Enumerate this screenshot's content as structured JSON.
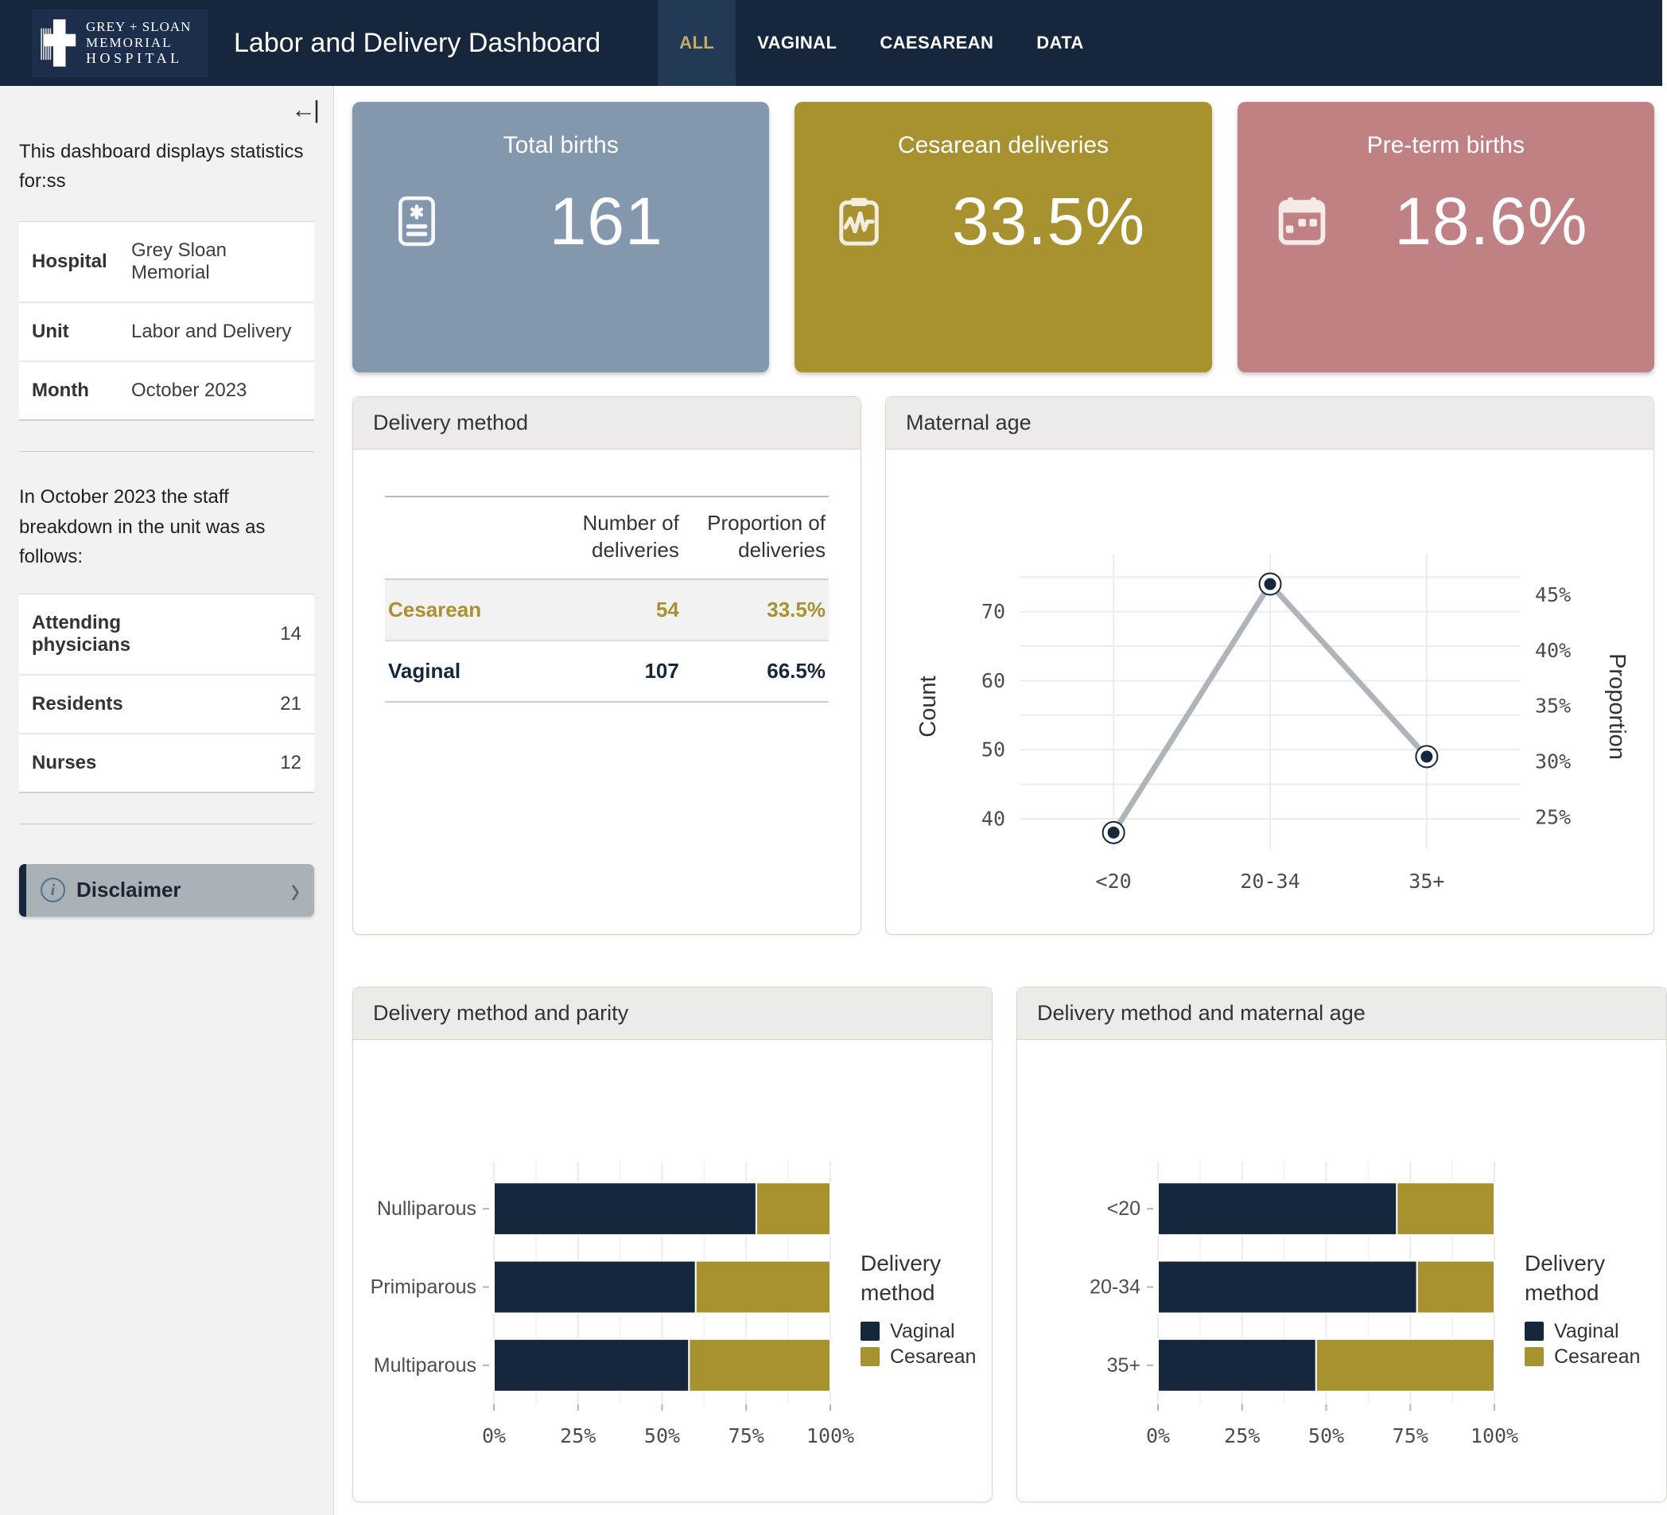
{
  "colors": {
    "navy": "#16263C",
    "navy_tab_active_bg": "#223A55",
    "gold": "#A8912F",
    "gold_text": "#C9AC5F",
    "rose": "#C08184",
    "bluegray": "#8398AC",
    "line_gray": "#AEB4B9",
    "grid_gray": "#EBEBEB"
  },
  "navbar": {
    "logo": {
      "line1": "GREY + SLOAN",
      "line2": "MEMORIAL",
      "line3": "HOSPITAL"
    },
    "title": "Labor and Delivery Dashboard",
    "tabs": [
      {
        "label": "ALL",
        "active": true
      },
      {
        "label": "VAGINAL",
        "active": false
      },
      {
        "label": "CAESAREAN",
        "active": false
      },
      {
        "label": "DATA",
        "active": false
      }
    ]
  },
  "sidebar": {
    "collapse_icon": "collapse-sidebar-icon",
    "intro": "This dashboard displays statistics for:ss",
    "info_table": [
      {
        "label": "Hospital",
        "value": "Grey Sloan Memorial"
      },
      {
        "label": "Unit",
        "value": "Labor and Delivery"
      },
      {
        "label": "Month",
        "value": "October 2023"
      }
    ],
    "staff_intro": "In October 2023 the staff breakdown in the unit was as follows:",
    "staff_table": [
      {
        "label": "Attending physicians",
        "value": "14"
      },
      {
        "label": "Residents",
        "value": "21"
      },
      {
        "label": "Nurses",
        "value": "12"
      }
    ],
    "disclaimer_label": "Disclaimer"
  },
  "value_boxes": [
    {
      "title": "Total births",
      "value": "161",
      "color": "#8398AC",
      "icon": "file-medical-icon"
    },
    {
      "title": "Cesarean deliveries",
      "value": "33.5%",
      "color": "#A8912F",
      "icon": "clipboard-pulse-icon"
    },
    {
      "title": "Pre-term births",
      "value": "18.6%",
      "color": "#C08184",
      "icon": "calendar-week-icon"
    }
  ],
  "delivery_method_card": {
    "title": "Delivery method",
    "table": {
      "col_headers": [
        "Number of deliveries",
        "Proportion of deliveries"
      ],
      "rows": [
        {
          "label": "Cesarean",
          "number": "54",
          "proportion": "33.5%",
          "color": "#A8912F"
        },
        {
          "label": "Vaginal",
          "number": "107",
          "proportion": "66.5%",
          "color": "#16263C"
        }
      ]
    }
  },
  "chart_data": [
    {
      "type": "line",
      "title": "Maternal age",
      "x": [
        "<20",
        "20-34",
        "35+"
      ],
      "counts": [
        38,
        74,
        49
      ],
      "proportions_pct": [
        23.6,
        46.0,
        30.4
      ],
      "total_births": 161,
      "ylabel_left": "Count",
      "ylabel_right": "Proportion",
      "yticks_left": [
        40,
        50,
        60,
        70
      ],
      "ygrid_counts": [
        40,
        45,
        50,
        55,
        60,
        65,
        70,
        75
      ],
      "yticks_right_pct": [
        25,
        30,
        35,
        40,
        45
      ],
      "ylim_counts": [
        35.5,
        77
      ],
      "grid": true,
      "legend_position": "none",
      "line_color": "#AEB4B9",
      "point_color": "#16263C"
    },
    {
      "type": "bar-stacked-horizontal",
      "title": "Delivery method and parity",
      "categories": [
        "Nulliparous",
        "Primiparous",
        "Multiparous"
      ],
      "series": [
        {
          "name": "Vaginal",
          "color": "#16263C",
          "values_pct": [
            78,
            60,
            58
          ]
        },
        {
          "name": "Cesarean",
          "color": "#A8912F",
          "values_pct": [
            22,
            40,
            42
          ]
        }
      ],
      "xticks_pct": [
        0,
        25,
        50,
        75,
        100
      ],
      "xlim_pct": [
        0,
        100
      ],
      "grid": true,
      "legend_title": "Delivery method",
      "legend_position": "right"
    },
    {
      "type": "bar-stacked-horizontal",
      "title": "Delivery method and maternal age",
      "categories": [
        "<20",
        "20-34",
        "35+"
      ],
      "series": [
        {
          "name": "Vaginal",
          "color": "#16263C",
          "values_pct": [
            71,
            77,
            47
          ]
        },
        {
          "name": "Cesarean",
          "color": "#A8912F",
          "values_pct": [
            29,
            23,
            53
          ]
        }
      ],
      "xticks_pct": [
        0,
        25,
        50,
        75,
        100
      ],
      "xlim_pct": [
        0,
        100
      ],
      "grid": true,
      "legend_title": "Delivery method",
      "legend_position": "right"
    }
  ]
}
